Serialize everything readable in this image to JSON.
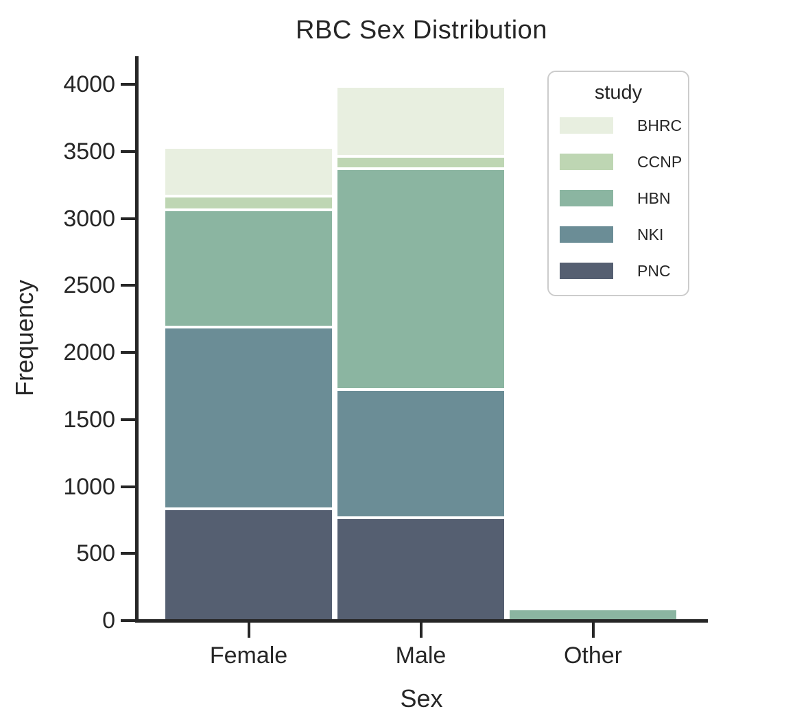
{
  "figure": {
    "title": "RBC Sex Distribution",
    "background_color": "#ffffff",
    "text_color": "#262626",
    "axis_color": "#262626"
  },
  "legend": {
    "title": "study",
    "border_color": "#cccccc",
    "entries": [
      "BHRC",
      "CCNP",
      "HBN",
      "NKI",
      "PNC"
    ]
  },
  "chart_data": {
    "type": "bar",
    "stacked": true,
    "title": "RBC Sex Distribution",
    "xlabel": "Sex",
    "ylabel": "Frequency",
    "categories": [
      "Female",
      "Male",
      "Other"
    ],
    "ylim": [
      0,
      4210
    ],
    "yticks": [
      0,
      500,
      1000,
      1500,
      2000,
      2500,
      3000,
      3500,
      4000
    ],
    "grid": false,
    "legend_title": "study",
    "legend_position": "upper-right",
    "stack_order_bottom_to_top": [
      "PNC",
      "NKI",
      "HBN",
      "CCNP",
      "BHRC"
    ],
    "series": [
      {
        "name": "BHRC",
        "color": "#e8efe0",
        "values": [
          365,
          520,
          0
        ]
      },
      {
        "name": "CCNP",
        "color": "#bed6b3",
        "values": [
          100,
          95,
          0
        ]
      },
      {
        "name": "HBN",
        "color": "#8bb5a1",
        "values": [
          875,
          1645,
          85
        ]
      },
      {
        "name": "NKI",
        "color": "#6b8d96",
        "values": [
          1355,
          960,
          0
        ]
      },
      {
        "name": "PNC",
        "color": "#555f71",
        "values": [
          835,
          765,
          0
        ]
      }
    ],
    "totals": [
      3530,
      3985,
      85
    ]
  }
}
